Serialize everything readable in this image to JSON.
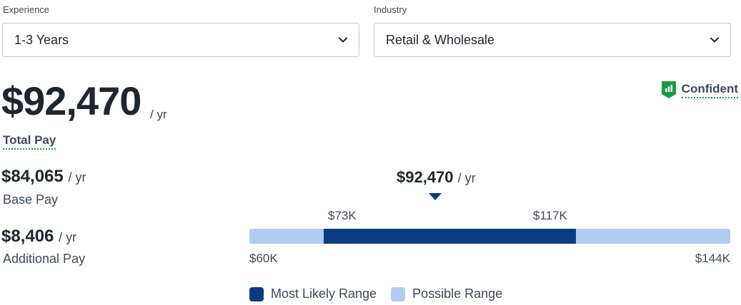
{
  "filters": {
    "experience": {
      "label": "Experience",
      "value": "1-3 Years"
    },
    "industry": {
      "label": "Industry",
      "value": "Retail & Wholesale"
    }
  },
  "total_pay": {
    "amount": "$92,470",
    "per": "/ yr",
    "label": "Total Pay"
  },
  "confidence": {
    "label": "Confident",
    "icon": "confidence-bars-icon",
    "color": "#1a9a40"
  },
  "base_pay": {
    "amount": "$84,065",
    "per": "/ yr",
    "label": "Base Pay"
  },
  "additional_pay": {
    "amount": "$8,406",
    "per": "/ yr",
    "label": "Additional Pay"
  },
  "chart_data": {
    "type": "range",
    "median": {
      "value": 92470,
      "label": "$92,470",
      "per": "/ yr"
    },
    "possible_range": {
      "min": 60000,
      "max": 144000,
      "min_label": "$60K",
      "max_label": "$144K"
    },
    "likely_range": {
      "min": 73000,
      "max": 117000,
      "min_label": "$73K",
      "max_label": "$117K"
    },
    "legend": [
      {
        "name": "Most Likely Range",
        "color": "#0c3b80"
      },
      {
        "name": "Possible Range",
        "color": "#b4cbf2"
      }
    ]
  }
}
